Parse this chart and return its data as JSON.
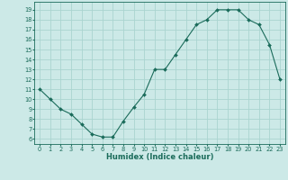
{
  "x": [
    0,
    1,
    2,
    3,
    4,
    5,
    6,
    7,
    8,
    9,
    10,
    11,
    12,
    13,
    14,
    15,
    16,
    17,
    18,
    19,
    20,
    21,
    22,
    23
  ],
  "y": [
    11,
    10,
    9,
    8.5,
    7.5,
    6.5,
    6.2,
    6.2,
    7.8,
    9.2,
    10.5,
    13,
    13,
    14.5,
    16,
    17.5,
    18,
    19,
    19,
    19,
    18,
    17.5,
    15.5,
    12
  ],
  "line_color": "#1a6b5a",
  "marker": "D",
  "marker_size": 2.0,
  "bg_color": "#cce9e7",
  "grid_color": "#aad4d0",
  "xlabel": "Humidex (Indice chaleur)",
  "xlim": [
    -0.5,
    23.5
  ],
  "ylim": [
    5.5,
    19.8
  ],
  "yticks": [
    6,
    7,
    8,
    9,
    10,
    11,
    12,
    13,
    14,
    15,
    16,
    17,
    18,
    19
  ],
  "xticks": [
    0,
    1,
    2,
    3,
    4,
    5,
    6,
    7,
    8,
    9,
    10,
    11,
    12,
    13,
    14,
    15,
    16,
    17,
    18,
    19,
    20,
    21,
    22,
    23
  ],
  "tick_color": "#1a6b5a",
  "label_color": "#1a6b5a",
  "axis_color": "#1a6b5a",
  "tick_fontsize": 4.8,
  "xlabel_fontsize": 6.0
}
